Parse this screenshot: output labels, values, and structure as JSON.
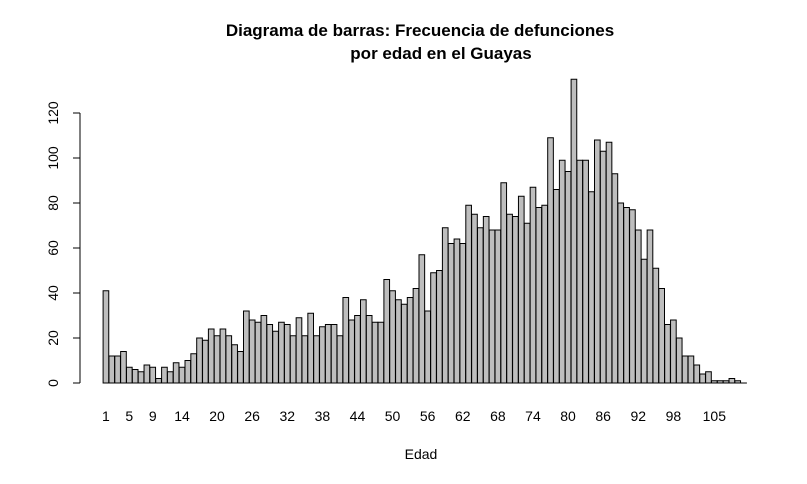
{
  "chart_data": {
    "type": "bar",
    "title_line1": "Diagrama de barras: Frecuencia de defunciones",
    "title_line2": "por edad en el Guayas",
    "xlabel": "Edad",
    "ylabel": "",
    "ylim": [
      0,
      135
    ],
    "y_ticks": [
      0,
      20,
      40,
      60,
      80,
      100,
      120
    ],
    "x_tick_labels": [
      "1",
      "5",
      "9",
      "14",
      "20",
      "26",
      "32",
      "38",
      "44",
      "50",
      "56",
      "62",
      "68",
      "74",
      "80",
      "86",
      "92",
      "98",
      "105"
    ],
    "bar_color": "#bebebe",
    "categories": [
      "1",
      "2",
      "3",
      "4",
      "5",
      "6",
      "7",
      "8",
      "9",
      "10",
      "11",
      "12",
      "13",
      "14",
      "15",
      "16",
      "17",
      "18",
      "19",
      "20",
      "21",
      "22",
      "23",
      "24",
      "25",
      "26",
      "27",
      "28",
      "29",
      "30",
      "31",
      "32",
      "33",
      "34",
      "35",
      "36",
      "37",
      "38",
      "39",
      "40",
      "41",
      "42",
      "43",
      "44",
      "45",
      "46",
      "47",
      "48",
      "49",
      "50",
      "51",
      "52",
      "53",
      "54",
      "55",
      "56",
      "57",
      "58",
      "59",
      "60",
      "61",
      "62",
      "63",
      "64",
      "65",
      "66",
      "67",
      "68",
      "69",
      "70",
      "71",
      "72",
      "73",
      "74",
      "75",
      "76",
      "77",
      "78",
      "79",
      "80",
      "81",
      "82",
      "83",
      "84",
      "85",
      "86",
      "87",
      "88",
      "89",
      "90",
      "91",
      "92",
      "93",
      "94",
      "95",
      "96",
      "97",
      "98",
      "99",
      "100",
      "101",
      "102",
      "103",
      "104",
      "105",
      "106",
      "107",
      "108",
      "109",
      "110"
    ],
    "values": [
      41,
      12,
      12,
      14,
      7,
      6,
      5,
      8,
      7,
      2,
      7,
      5,
      9,
      7,
      10,
      13,
      20,
      19,
      24,
      21,
      24,
      21,
      17,
      14,
      32,
      28,
      27,
      30,
      26,
      23,
      27,
      26,
      21,
      29,
      21,
      31,
      21,
      25,
      26,
      26,
      21,
      38,
      28,
      30,
      37,
      30,
      27,
      27,
      46,
      41,
      37,
      35,
      38,
      42,
      57,
      32,
      49,
      50,
      69,
      62,
      64,
      62,
      79,
      75,
      69,
      74,
      68,
      68,
      89,
      75,
      74,
      83,
      71,
      87,
      78,
      79,
      109,
      86,
      99,
      94,
      135,
      99,
      99,
      85,
      108,
      103,
      107,
      93,
      80,
      78,
      77,
      68,
      55,
      68,
      51,
      42,
      26,
      28,
      20,
      12,
      12,
      8,
      4,
      5,
      1,
      1,
      1,
      2,
      1,
      0
    ]
  }
}
